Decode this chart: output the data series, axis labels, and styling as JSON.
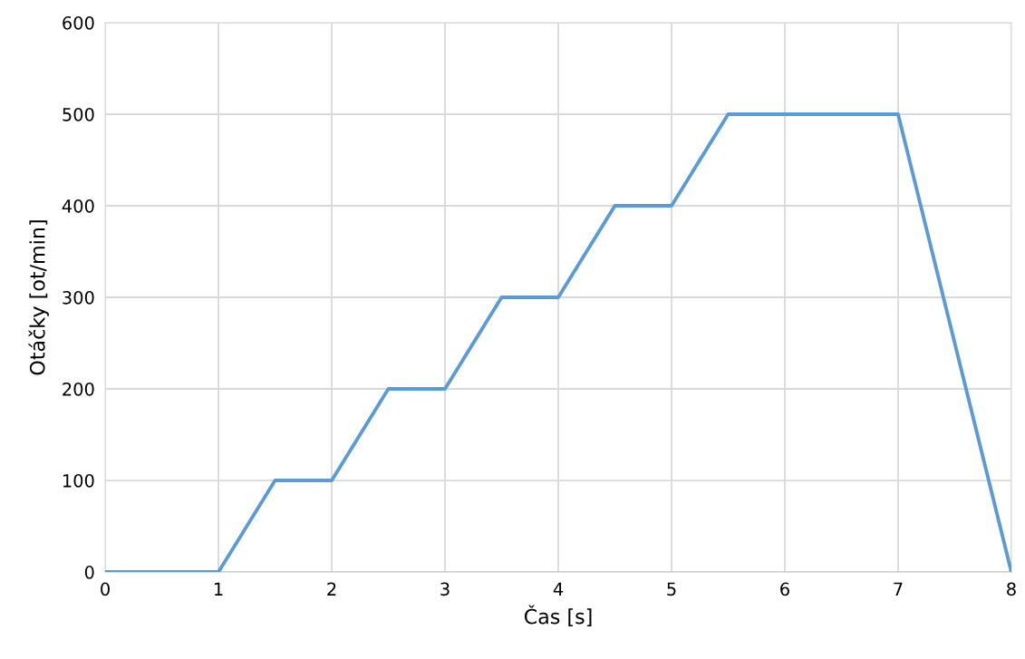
{
  "chart_data": {
    "type": "line",
    "xlabel": "Čas [s]",
    "ylabel": "Otáčky [ot/min]",
    "series": [
      {
        "color": "#5b9bd5",
        "x": [
          0,
          1,
          1.5,
          2,
          2.5,
          3,
          3.5,
          4,
          4.5,
          5,
          5.5,
          7,
          8
        ],
        "values": [
          0,
          0,
          100,
          100,
          200,
          200,
          300,
          300,
          400,
          400,
          500,
          500,
          0
        ]
      }
    ],
    "xlim": [
      0,
      8
    ],
    "xticks": [
      0,
      1,
      2,
      3,
      4,
      5,
      6,
      7,
      8
    ],
    "ylim": [
      0,
      600
    ],
    "yticks": [
      0,
      100,
      200,
      300,
      400,
      500,
      600
    ],
    "grid": true,
    "marker": "none",
    "line_style": "solid"
  }
}
